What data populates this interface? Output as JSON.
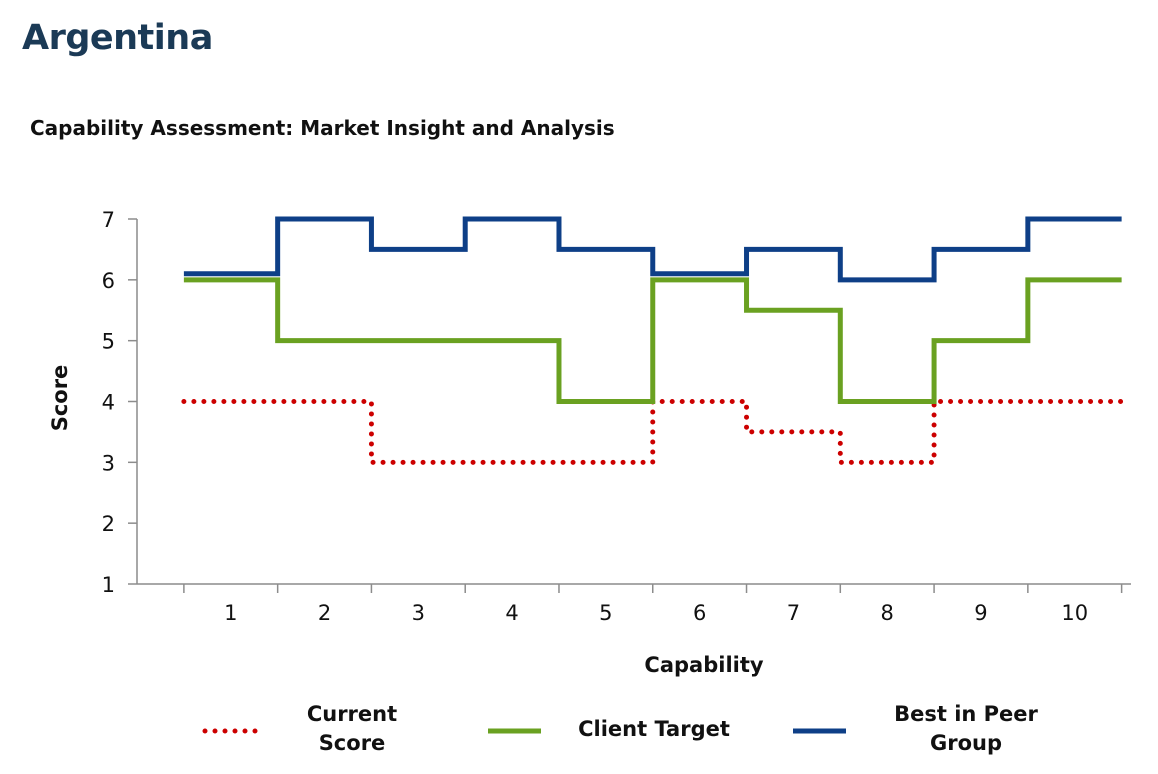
{
  "page": {
    "title": "Argentina"
  },
  "chart_data": {
    "type": "line",
    "step": true,
    "title": "Capability Assessment: Market Insight and Analysis",
    "xlabel": "Capability",
    "ylabel": "Score",
    "x": [
      1,
      2,
      3,
      4,
      5,
      6,
      7,
      8,
      9,
      10
    ],
    "xlim": [
      0,
      10.6
    ],
    "ylim": [
      1,
      7
    ],
    "xticks": [
      1,
      2,
      3,
      4,
      5,
      6,
      7,
      8,
      9,
      10
    ],
    "yticks": [
      1,
      2,
      3,
      4,
      5,
      6,
      7
    ],
    "grid": false,
    "legend_position": "bottom",
    "series": [
      {
        "name": "Current Score",
        "legend_lines": [
          "Current",
          "Score"
        ],
        "values": [
          4,
          4,
          3,
          3,
          3,
          4,
          3.5,
          3,
          4,
          4
        ],
        "color": "#cc0000",
        "style": "dotted"
      },
      {
        "name": "Client Target",
        "legend_lines": [
          "Client Target"
        ],
        "values": [
          6,
          5,
          5,
          5,
          4,
          6,
          5.5,
          4,
          5,
          6
        ],
        "color": "#6aa121",
        "style": "solid"
      },
      {
        "name": "Best in Peer Group",
        "legend_lines": [
          "Best in Peer",
          "Group"
        ],
        "values": [
          6.1,
          7,
          6.5,
          7,
          6.5,
          6.1,
          6.5,
          6,
          6.5,
          7
        ],
        "color": "#0e3f87",
        "style": "solid"
      }
    ]
  }
}
